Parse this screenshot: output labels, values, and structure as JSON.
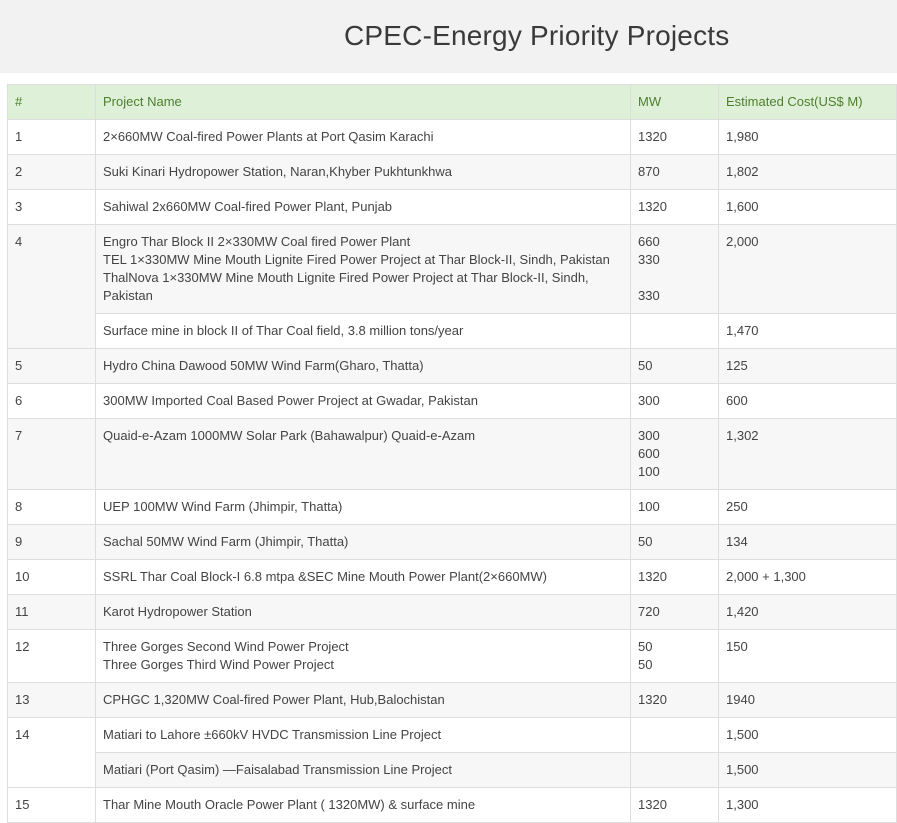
{
  "page_title": "CPEC-Energy Priority Projects",
  "columns": [
    "#",
    "Project Name",
    "MW",
    "Estimated Cost(US$ M)"
  ],
  "rows": {
    "r1": {
      "no": "1",
      "name": "2×660MW Coal-fired Power Plants at Port Qasim Karachi",
      "mw": "1320",
      "cost": "1,980"
    },
    "r2": {
      "no": "2",
      "name": "Suki Kinari Hydropower Station, Naran,Khyber Pukhtunkhwa",
      "mw": "870",
      "cost": "1,802"
    },
    "r3": {
      "no": "3",
      "name": "Sahiwal 2x660MW Coal-fired Power Plant, Punjab",
      "mw": "1320",
      "cost": "1,600"
    },
    "r4": {
      "no": "4",
      "name_lines": [
        "Engro Thar Block II 2×330MW Coal fired Power Plant",
        "TEL 1×330MW Mine Mouth Lignite Fired Power Project at Thar Block-II, Sindh, Pakistan",
        "ThalNova 1×330MW Mine Mouth Lignite Fired Power Project at Thar Block-II, Sindh, Pakistan"
      ],
      "mw_lines": [
        "660",
        "330",
        "330"
      ],
      "cost": "2,000"
    },
    "r4b": {
      "name": "Surface mine in block II of Thar Coal field, 3.8 million tons/year",
      "mw": "",
      "cost": "1,470"
    },
    "r5": {
      "no": "5",
      "name": "Hydro China Dawood 50MW Wind Farm(Gharo, Thatta)",
      "mw": "50",
      "cost": "125"
    },
    "r6": {
      "no": "6",
      "name": "300MW Imported Coal Based Power Project at Gwadar, Pakistan",
      "mw": "300",
      "cost": "600"
    },
    "r7": {
      "no": "7",
      "name": "Quaid-e-Azam 1000MW Solar Park (Bahawalpur) Quaid-e-Azam",
      "mw_lines": [
        "300",
        "600",
        "100"
      ],
      "cost": "1,302"
    },
    "r8": {
      "no": "8",
      "name": "UEP 100MW Wind Farm (Jhimpir, Thatta)",
      "mw": "100",
      "cost": "250"
    },
    "r9": {
      "no": "9",
      "name": "Sachal 50MW Wind Farm (Jhimpir, Thatta)",
      "mw": "50",
      "cost": "134"
    },
    "r10": {
      "no": "10",
      "name": "SSRL Thar Coal Block-I 6.8 mtpa &SEC Mine Mouth Power Plant(2×660MW)",
      "mw": "1320",
      "cost": "2,000 + 1,300"
    },
    "r11": {
      "no": "11",
      "name": "Karot Hydropower Station",
      "mw": "720",
      "cost": "1,420"
    },
    "r12": {
      "no": "12",
      "name_lines": [
        "Three Gorges Second Wind Power Project",
        "Three Gorges Third Wind Power Project"
      ],
      "mw_lines": [
        "50",
        "50"
      ],
      "cost": "150"
    },
    "r13": {
      "no": "13",
      "name": "CPHGC 1,320MW Coal-fired Power Plant, Hub,Balochistan",
      "mw": "1320",
      "cost": "1940"
    },
    "r14": {
      "no": "14",
      "name": "Matiari to Lahore ±660kV HVDC Transmission Line Project",
      "mw": "",
      "cost": "1,500"
    },
    "r14b": {
      "name": "Matiari (Port Qasim) —Faisalabad Transmission Line Project",
      "mw": "",
      "cost": "1,500"
    },
    "r15": {
      "no": "15",
      "name": "Thar Mine Mouth Oracle Power Plant ( 1320MW) & surface mine",
      "mw": "1320",
      "cost": "1,300"
    }
  }
}
